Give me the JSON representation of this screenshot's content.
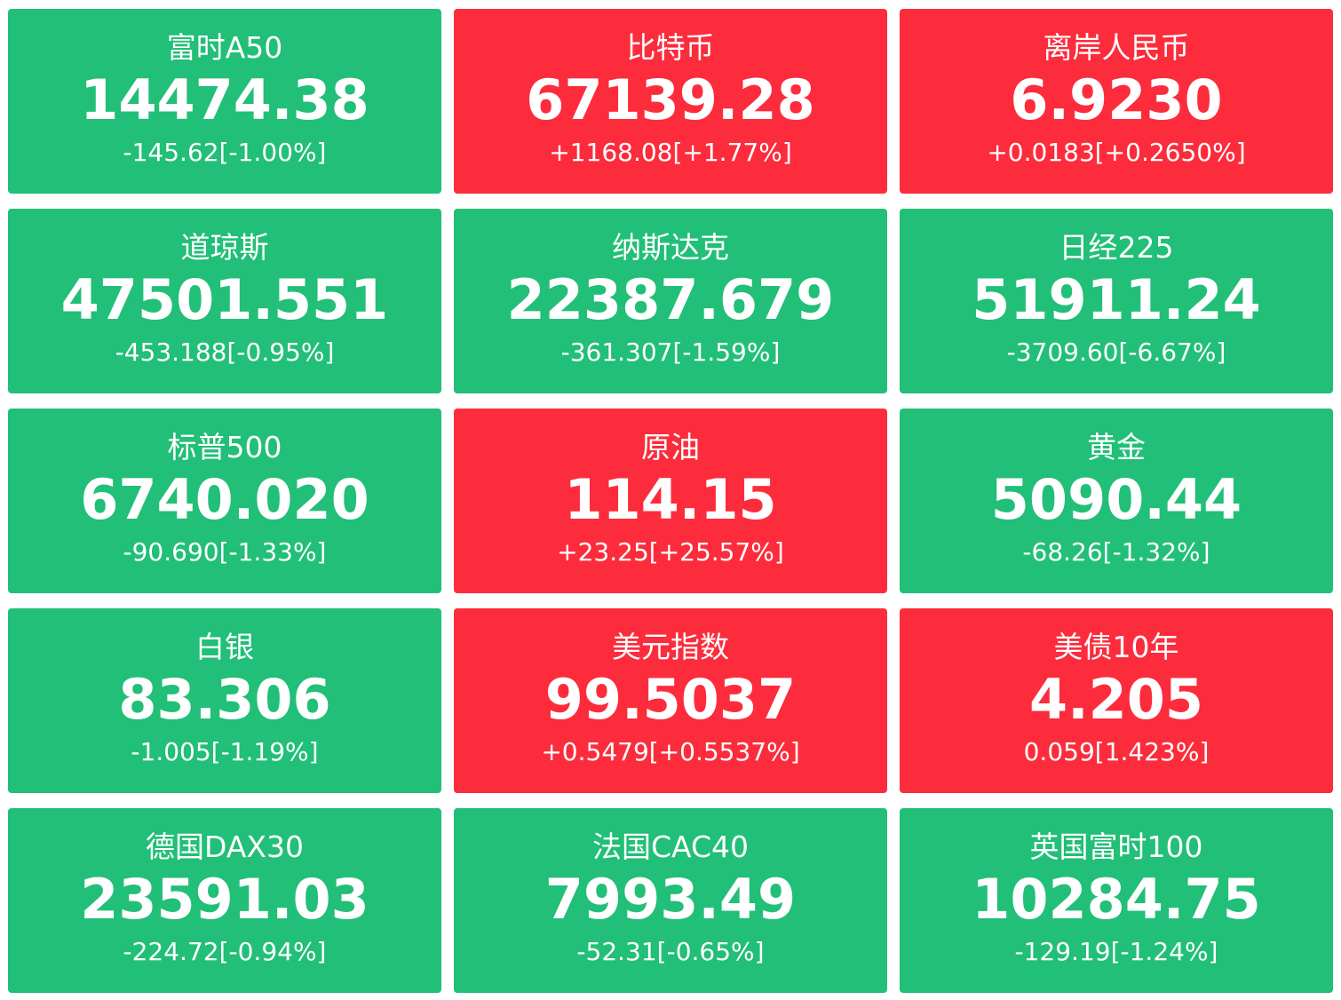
{
  "colors": {
    "down": "#21bf77",
    "up": "#fc2c3c",
    "text": "#ffffff"
  },
  "tiles": [
    {
      "name": "富时A50",
      "price": "14474.38",
      "change": "-145.62[-1.00%]",
      "direction": "down"
    },
    {
      "name": "比特币",
      "price": "67139.28",
      "change": "+1168.08[+1.77%]",
      "direction": "up"
    },
    {
      "name": "离岸人民币",
      "price": "6.9230",
      "change": "+0.0183[+0.2650%]",
      "direction": "up"
    },
    {
      "name": "道琼斯",
      "price": "47501.551",
      "change": "-453.188[-0.95%]",
      "direction": "down"
    },
    {
      "name": "纳斯达克",
      "price": "22387.679",
      "change": "-361.307[-1.59%]",
      "direction": "down"
    },
    {
      "name": "日经225",
      "price": "51911.24",
      "change": "-3709.60[-6.67%]",
      "direction": "down"
    },
    {
      "name": "标普500",
      "price": "6740.020",
      "change": "-90.690[-1.33%]",
      "direction": "down"
    },
    {
      "name": "原油",
      "price": "114.15",
      "change": "+23.25[+25.57%]",
      "direction": "up"
    },
    {
      "name": "黄金",
      "price": "5090.44",
      "change": "-68.26[-1.32%]",
      "direction": "down"
    },
    {
      "name": "白银",
      "price": "83.306",
      "change": "-1.005[-1.19%]",
      "direction": "down"
    },
    {
      "name": "美元指数",
      "price": "99.5037",
      "change": "+0.5479[+0.5537%]",
      "direction": "up"
    },
    {
      "name": "美债10年",
      "price": "4.205",
      "change": "0.059[1.423%]",
      "direction": "up"
    },
    {
      "name": "德国DAX30",
      "price": "23591.03",
      "change": "-224.72[-0.94%]",
      "direction": "down"
    },
    {
      "name": "法国CAC40",
      "price": "7993.49",
      "change": "-52.31[-0.65%]",
      "direction": "down"
    },
    {
      "name": "英国富时100",
      "price": "10284.75",
      "change": "-129.19[-1.24%]",
      "direction": "down"
    }
  ]
}
